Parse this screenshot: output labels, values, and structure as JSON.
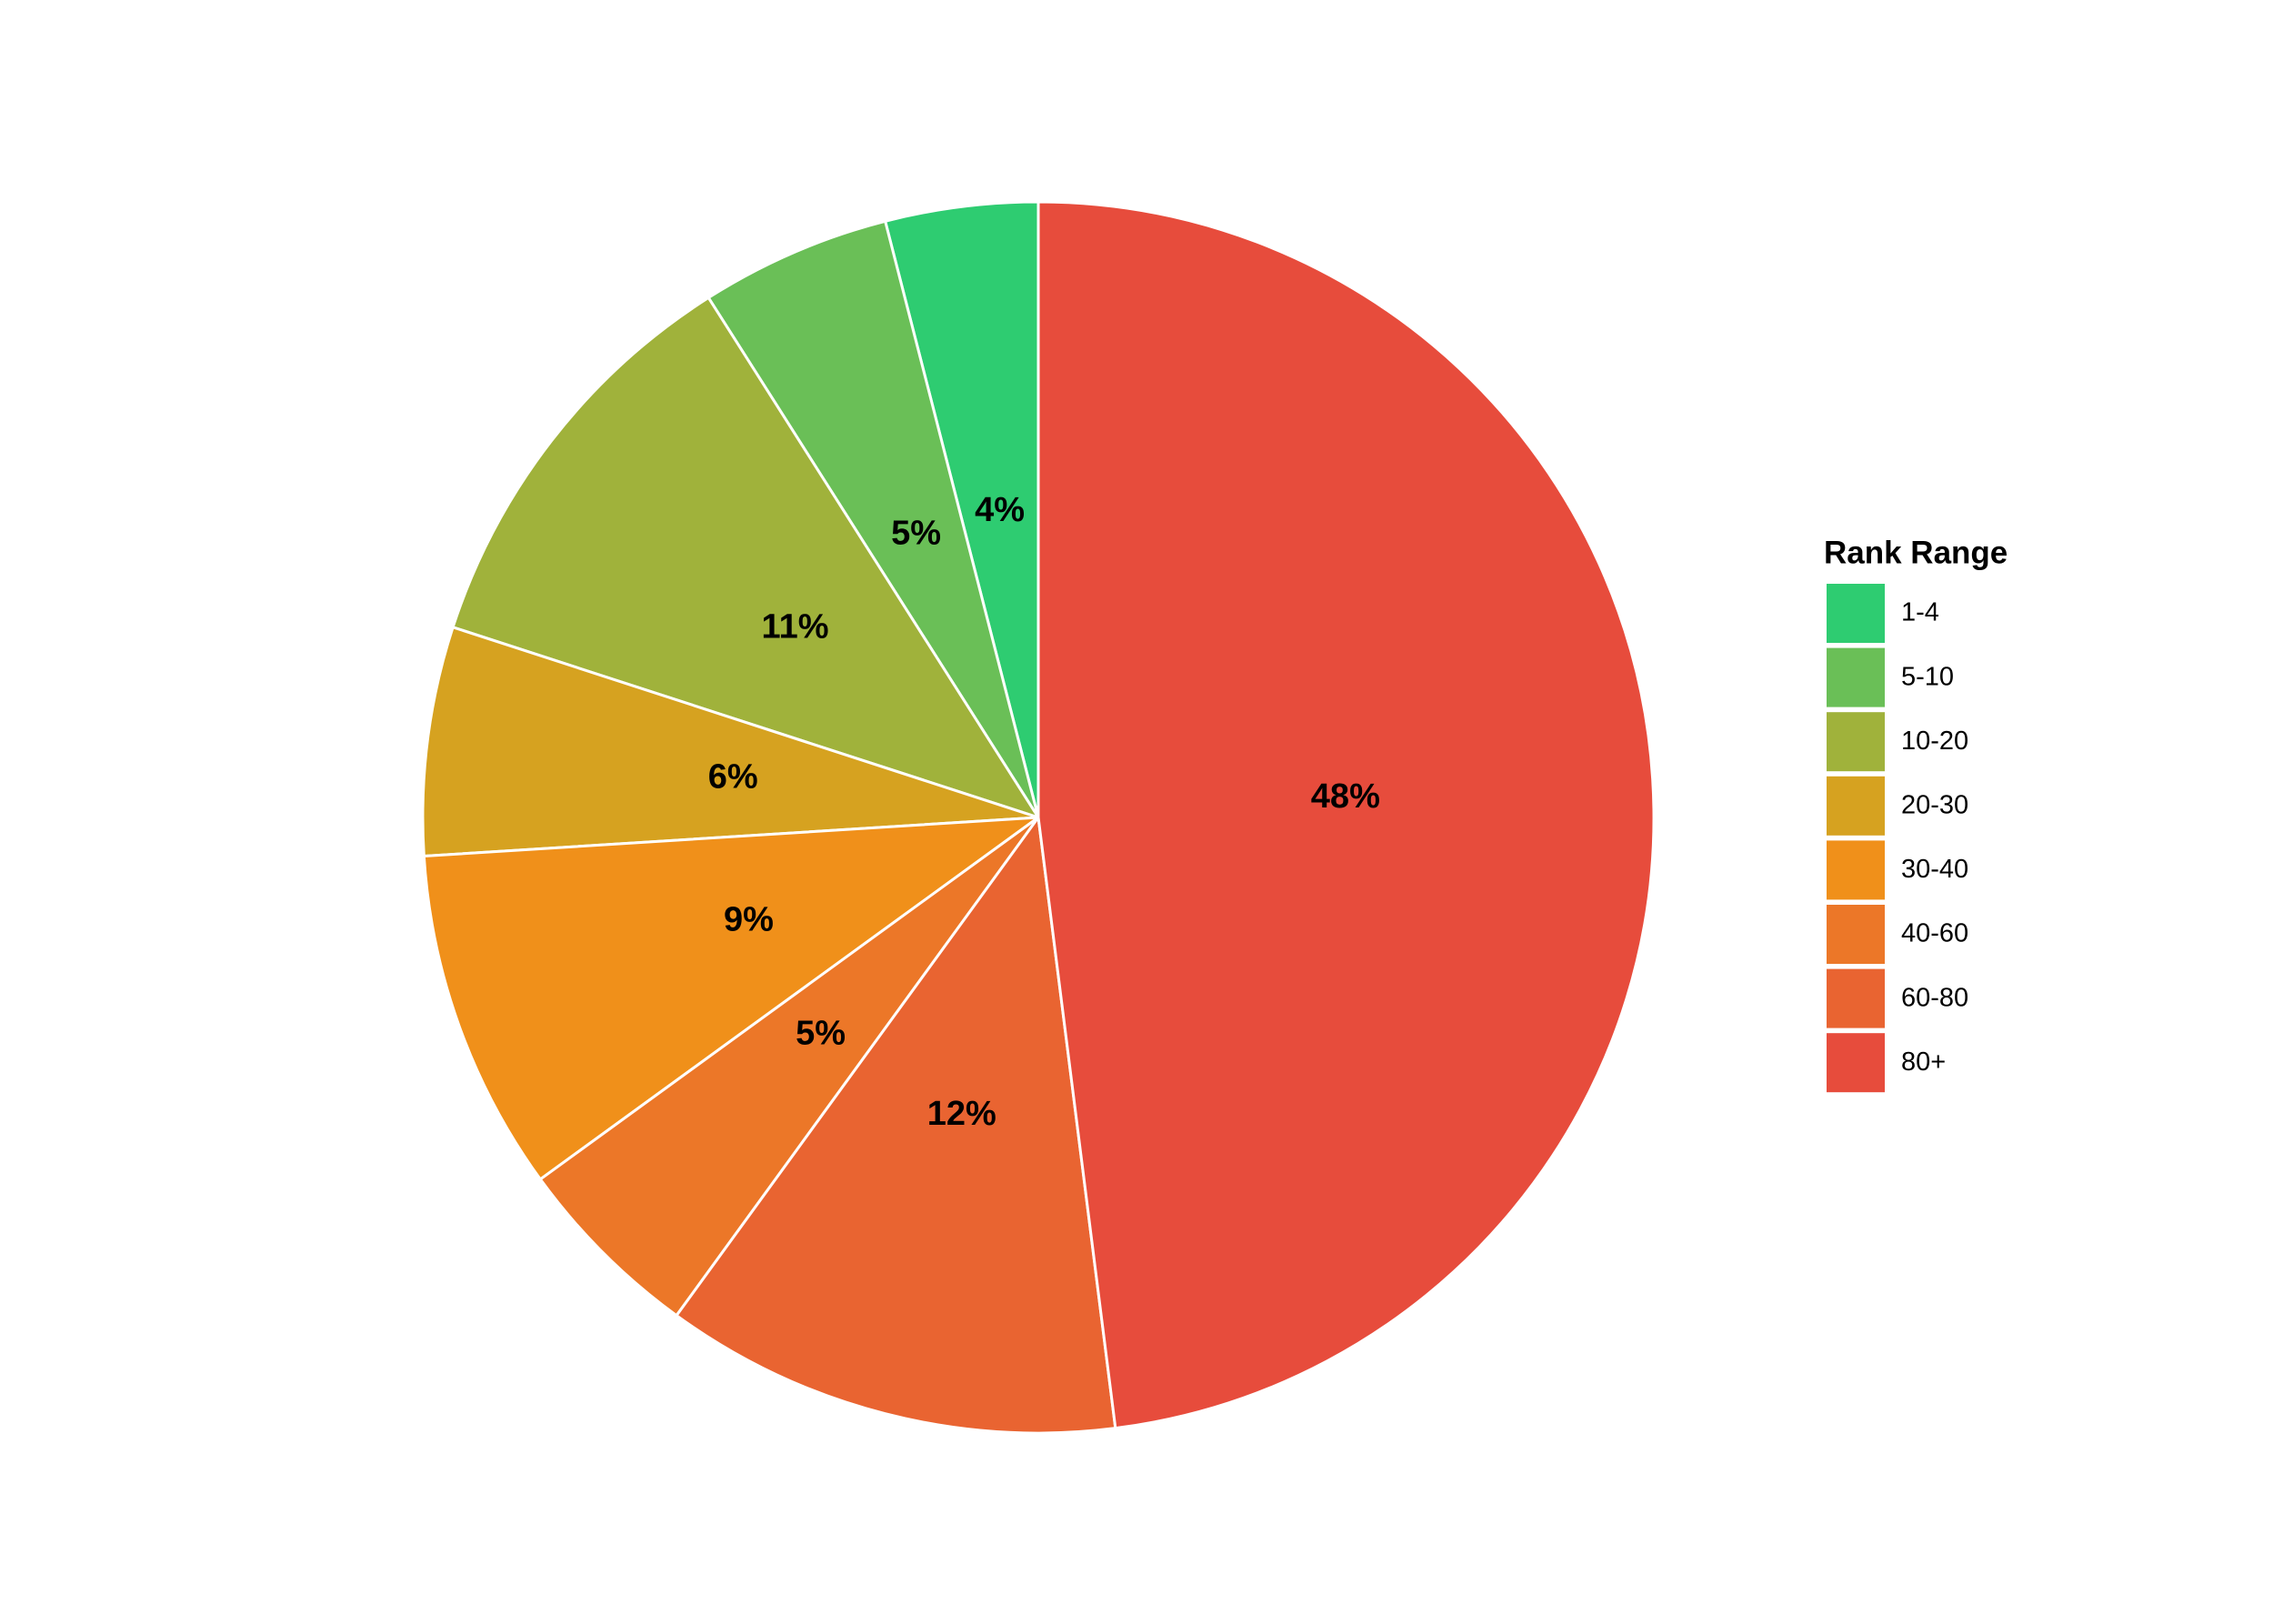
{
  "chart_data": {
    "type": "pie",
    "legend_title": "Rank Range",
    "categories": [
      "1-4",
      "5-10",
      "10-20",
      "20-30",
      "30-40",
      "40-60",
      "60-80",
      "80+"
    ],
    "values": [
      4,
      5,
      11,
      6,
      9,
      5,
      12,
      48
    ],
    "value_labels": [
      "4%",
      "5%",
      "11%",
      "6%",
      "9%",
      "5%",
      "12%",
      "48%"
    ],
    "colors": [
      "#2ecc71",
      "#6abf57",
      "#a0b23b",
      "#d6a220",
      "#f0901a",
      "#ec7728",
      "#e96431",
      "#e74c3c"
    ],
    "direction": "counterclockwise",
    "legend": "right"
  }
}
